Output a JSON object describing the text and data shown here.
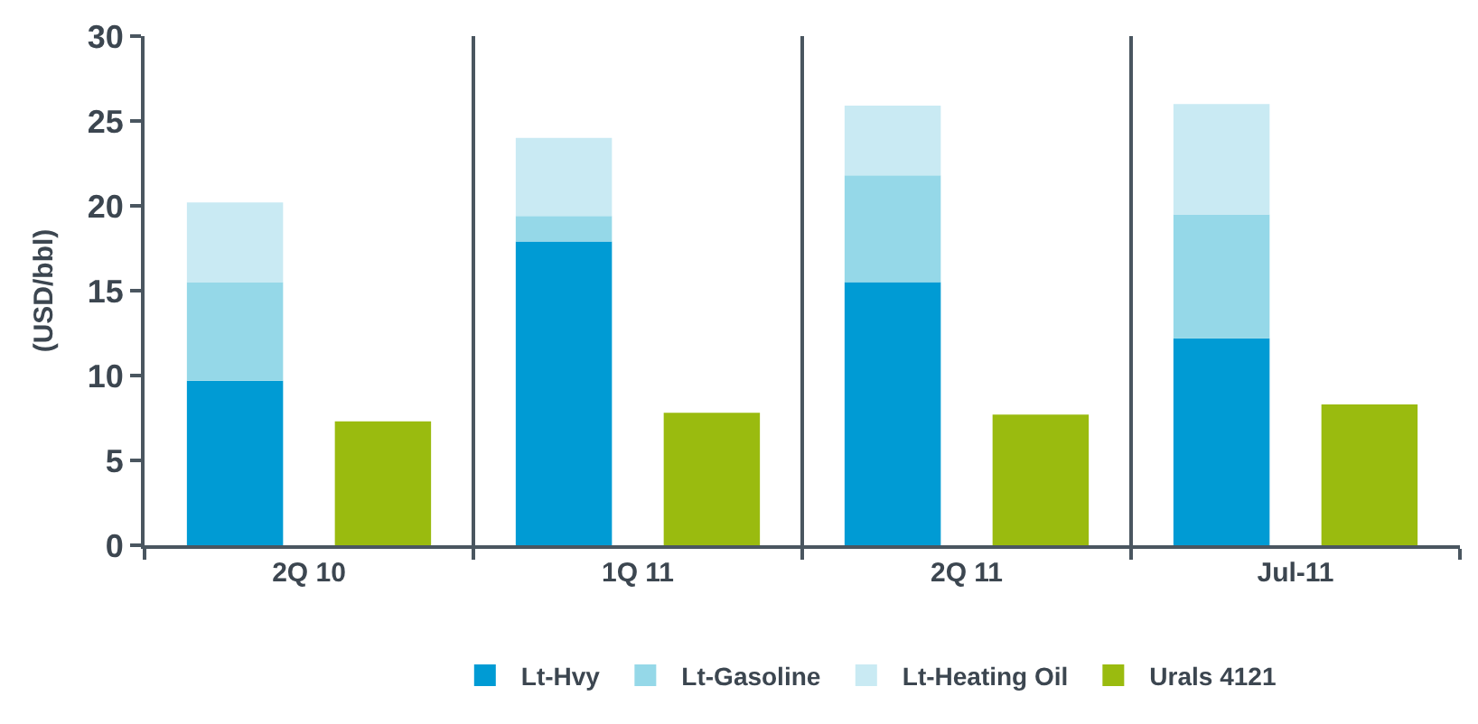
{
  "chart_data": {
    "type": "bar",
    "ylabel": "(USD/bbl)",
    "categories": [
      "2Q 10",
      "1Q 11",
      "2Q 11",
      "Jul-11"
    ],
    "series": [
      {
        "name": "Lt-Hvy",
        "color": "#009bd4",
        "values": [
          9.7,
          17.9,
          15.5,
          12.2
        ],
        "base": [
          0,
          0,
          0,
          0
        ]
      },
      {
        "name": "Lt-Gasoline",
        "color": "#95d8e8",
        "values": [
          5.8,
          1.5,
          6.3,
          7.3
        ],
        "base": [
          9.7,
          17.9,
          15.5,
          12.2
        ]
      },
      {
        "name": "Lt-Heating Oil",
        "color": "#c9eaf3",
        "values": [
          4.7,
          4.6,
          4.1,
          6.5
        ],
        "base": [
          15.5,
          19.4,
          21.8,
          19.5
        ]
      },
      {
        "name": "Urals 4121",
        "color": "#9abb0f",
        "values": [
          7.3,
          7.8,
          7.7,
          8.3
        ],
        "base": [
          0,
          0,
          0,
          0
        ]
      }
    ],
    "ylim": [
      0,
      30
    ],
    "yticks": [
      0,
      5,
      10,
      15,
      20,
      25,
      30
    ],
    "grid": "x",
    "legend": "bottom"
  }
}
